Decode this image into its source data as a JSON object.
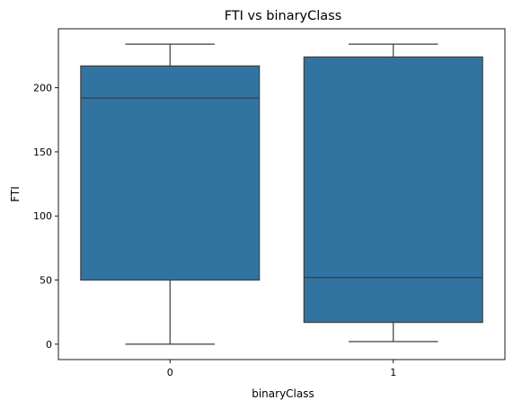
{
  "chart_data": {
    "type": "box",
    "title": "FTI vs binaryClass",
    "xlabel": "binaryClass",
    "ylabel": "FTI",
    "categories": [
      "0",
      "1"
    ],
    "boxes": [
      {
        "category": "0",
        "whisker_low": 0,
        "q1": 50,
        "median": 192,
        "q3": 217,
        "whisker_high": 234
      },
      {
        "category": "1",
        "whisker_low": 2,
        "q1": 17,
        "median": 52,
        "q3": 224,
        "whisker_high": 234
      }
    ],
    "yticks": [
      0,
      50,
      100,
      150,
      200
    ],
    "ylim": [
      -12,
      246
    ],
    "grid": false,
    "colors": {
      "box_fill": "#3274a1",
      "line": "#3d3d3d",
      "axis": "#000000"
    }
  }
}
